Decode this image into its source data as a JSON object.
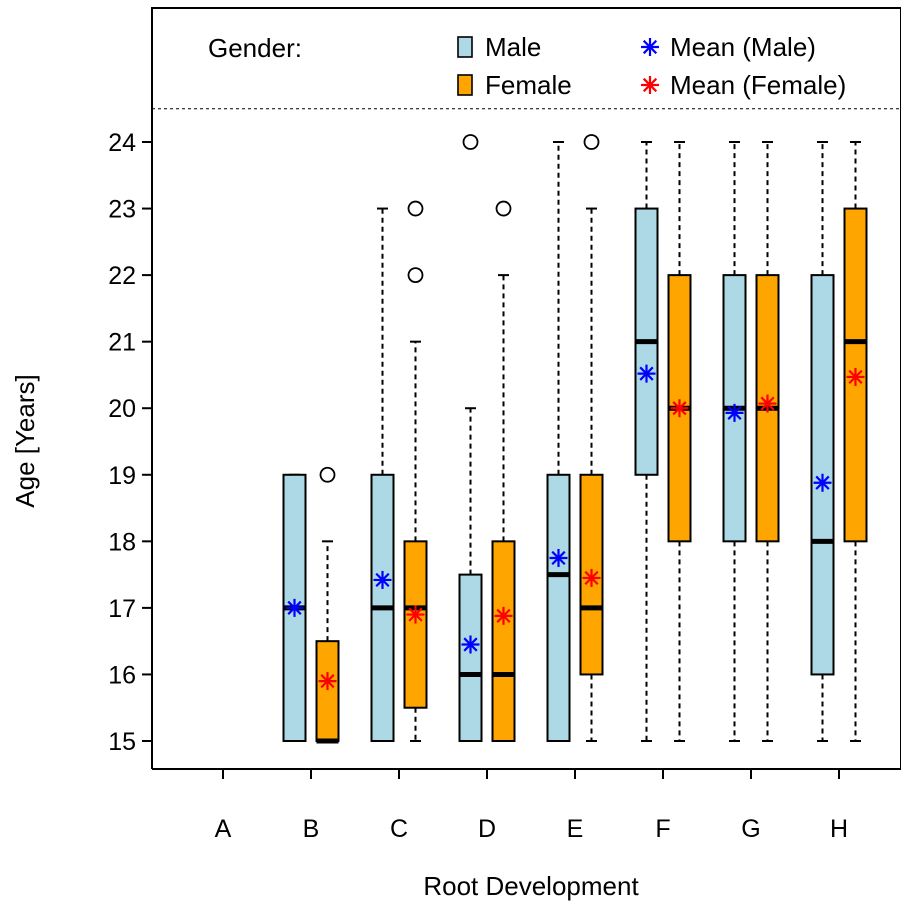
{
  "chart_data": {
    "type": "boxplot",
    "xlabel": "Root Development",
    "ylabel": "Age [Years]",
    "categories": [
      "A",
      "B",
      "C",
      "D",
      "E",
      "F",
      "G",
      "H"
    ],
    "yticks": [
      15,
      16,
      17,
      18,
      19,
      20,
      21,
      22,
      23,
      24
    ],
    "ylim": [
      14.6,
      26.2
    ],
    "separator_y": 24.5,
    "legend": {
      "title": "Gender:",
      "placement": "top",
      "entries": [
        {
          "label": "Male",
          "kind": "box",
          "color": "#ADD8E6"
        },
        {
          "label": "Female",
          "kind": "box",
          "color": "#FFA500"
        },
        {
          "label": "Mean (Male)",
          "kind": "mean",
          "color": "#0000FF"
        },
        {
          "label": "Mean (Female)",
          "kind": "mean",
          "color": "#FF0000"
        }
      ]
    },
    "series": [
      {
        "name": "Male",
        "fill": "#ADD8E6",
        "mean_color": "#0000FF",
        "groups": [
          null,
          {
            "category": "B",
            "whisker_low": 15,
            "q1": 15,
            "median": 17,
            "q3": 19,
            "whisker_high": 19,
            "mean": 17.0,
            "outliers": []
          },
          {
            "category": "C",
            "whisker_low": 15,
            "q1": 15,
            "median": 17,
            "q3": 19,
            "whisker_high": 23,
            "mean": 17.42,
            "outliers": []
          },
          {
            "category": "D",
            "whisker_low": 15,
            "q1": 15,
            "median": 16,
            "q3": 17.5,
            "whisker_high": 20,
            "mean": 16.45,
            "outliers": [
              24
            ]
          },
          {
            "category": "E",
            "whisker_low": 15,
            "q1": 15,
            "median": 17.5,
            "q3": 19,
            "whisker_high": 24,
            "mean": 17.75,
            "outliers": []
          },
          {
            "category": "F",
            "whisker_low": 15,
            "q1": 19,
            "median": 21,
            "q3": 23,
            "whisker_high": 24,
            "mean": 20.52,
            "outliers": []
          },
          {
            "category": "G",
            "whisker_low": 15,
            "q1": 18,
            "median": 20,
            "q3": 22,
            "whisker_high": 24,
            "mean": 19.93,
            "outliers": []
          },
          {
            "category": "H",
            "whisker_low": 15,
            "q1": 16,
            "median": 18,
            "q3": 22,
            "whisker_high": 24,
            "mean": 18.88,
            "outliers": []
          }
        ]
      },
      {
        "name": "Female",
        "fill": "#FFA500",
        "mean_color": "#FF0000",
        "groups": [
          null,
          {
            "category": "B",
            "whisker_low": 15,
            "q1": 15,
            "median": 15,
            "q3": 16.5,
            "whisker_high": 18,
            "mean": 15.9,
            "outliers": [
              19
            ]
          },
          {
            "category": "C",
            "whisker_low": 15,
            "q1": 15.5,
            "median": 17,
            "q3": 18,
            "whisker_high": 21,
            "mean": 16.9,
            "outliers": [
              22,
              23
            ]
          },
          {
            "category": "D",
            "whisker_low": 15,
            "q1": 15,
            "median": 16,
            "q3": 18,
            "whisker_high": 22,
            "mean": 16.88,
            "outliers": [
              23
            ]
          },
          {
            "category": "E",
            "whisker_low": 15,
            "q1": 16,
            "median": 17,
            "q3": 19,
            "whisker_high": 23,
            "mean": 17.45,
            "outliers": [
              24
            ]
          },
          {
            "category": "F",
            "whisker_low": 15,
            "q1": 18,
            "median": 20,
            "q3": 22,
            "whisker_high": 24,
            "mean": 20.0,
            "outliers": []
          },
          {
            "category": "G",
            "whisker_low": 15,
            "q1": 18,
            "median": 20,
            "q3": 22,
            "whisker_high": 24,
            "mean": 20.07,
            "outliers": []
          },
          {
            "category": "H",
            "whisker_low": 15,
            "q1": 18,
            "median": 21,
            "q3": 23,
            "whisker_high": 24,
            "mean": 20.47,
            "outliers": []
          }
        ]
      }
    ]
  }
}
